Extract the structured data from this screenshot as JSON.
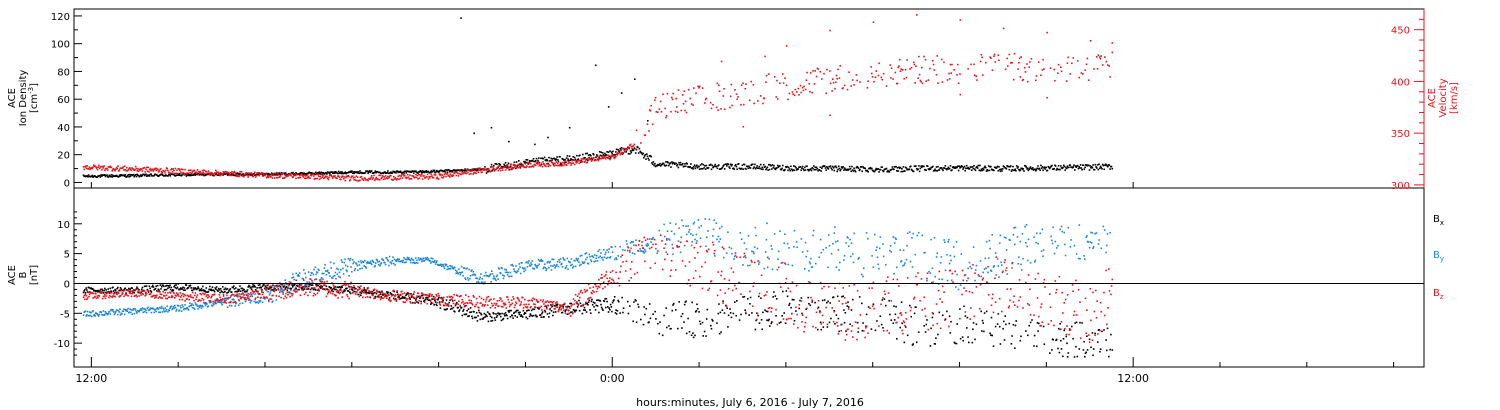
{
  "colors": {
    "black": "#000000",
    "red": "#e8141c",
    "blue": "#1a86d8"
  },
  "xaxis": {
    "label": "hours:minutes, July  6, 2016 - July  7, 2016",
    "major_ticks": [
      {
        "hours": 12,
        "label": "12:00"
      },
      {
        "hours": 24,
        "label": "0:00"
      },
      {
        "hours": 36,
        "label": "12:00"
      }
    ],
    "minor_tick_hours": [
      14,
      16,
      18,
      20,
      22,
      26,
      28,
      30,
      32,
      34,
      38,
      40,
      42
    ],
    "range_hours": [
      11.6,
      42.7
    ]
  },
  "chart_data": [
    {
      "type": "scatter",
      "panel": "top",
      "ylabel_left": [
        "ACE",
        "Ion Density",
        "[cm-3]"
      ],
      "ylabel_right": [
        "ACE",
        "Velocity",
        "[km/s]"
      ],
      "ylim_left": [
        -4,
        125
      ],
      "yticks_left": [
        0,
        20,
        40,
        60,
        80,
        100,
        120
      ],
      "ylim_right": [
        297,
        470
      ],
      "yticks_right": [
        300,
        350,
        400,
        450
      ],
      "x_units": "hours since 0:00 July 6, 2016",
      "series": [
        {
          "color": "black",
          "axis": "left",
          "values": [
            [
              11.8,
              5.0
            ],
            [
              13,
              5.5
            ],
            [
              14,
              6.0
            ],
            [
              15,
              6.5
            ],
            [
              16,
              6.5
            ],
            [
              17,
              7.0
            ],
            [
              18,
              8.0
            ],
            [
              19,
              8.0
            ],
            [
              20,
              8.5
            ],
            [
              21,
              10.0
            ],
            [
              22,
              14.0
            ],
            [
              22.5,
              16.0
            ],
            [
              23,
              17.0
            ],
            [
              23.5,
              19.0
            ],
            [
              24,
              21.0
            ],
            [
              24.5,
              25.0
            ],
            [
              25,
              14.0
            ],
            [
              26,
              12.0
            ],
            [
              27,
              12.0
            ],
            [
              28,
              11.0
            ],
            [
              29,
              10.5
            ],
            [
              30,
              10.0
            ],
            [
              31,
              10.5
            ],
            [
              32,
              11.0
            ],
            [
              33,
              10.5
            ],
            [
              34,
              11.0
            ],
            [
              35,
              11.5
            ],
            [
              35.5,
              12.0
            ]
          ],
          "outliers": [
            [
              20.8,
              36
            ],
            [
              21.2,
              40
            ],
            [
              21.6,
              30
            ],
            [
              22.5,
              33
            ],
            [
              23,
              40
            ],
            [
              23.6,
              85
            ],
            [
              23.9,
              55
            ],
            [
              24.2,
              65
            ],
            [
              24.5,
              75
            ],
            [
              24.8,
              45
            ],
            [
              22.2,
              28
            ],
            [
              20.5,
              119
            ]
          ]
        },
        {
          "color": "red",
          "axis": "right",
          "values": [
            [
              11.8,
              318
            ],
            [
              13,
              316
            ],
            [
              14,
              314
            ],
            [
              15,
              312
            ],
            [
              16,
              310
            ],
            [
              17,
              309
            ],
            [
              18,
              307
            ],
            [
              19,
              308
            ],
            [
              20,
              309
            ],
            [
              21,
              315
            ],
            [
              22,
              320
            ],
            [
              23,
              322
            ],
            [
              24,
              328
            ],
            [
              24.5,
              340
            ],
            [
              25,
              375
            ],
            [
              26,
              383
            ],
            [
              27,
              390
            ],
            [
              28,
              397
            ],
            [
              29,
              403
            ],
            [
              30,
              409
            ],
            [
              31,
              411
            ],
            [
              32,
              413
            ],
            [
              33,
              415
            ],
            [
              34,
              414
            ],
            [
              35,
              415
            ],
            [
              35.5,
              416
            ]
          ],
          "outliers": [
            [
              26.5,
              420
            ],
            [
              27.5,
              425
            ],
            [
              28,
              435
            ],
            [
              29,
              450
            ],
            [
              30,
              458
            ],
            [
              31,
              465
            ],
            [
              32,
              460
            ],
            [
              33,
              452
            ],
            [
              34,
              448
            ],
            [
              35,
              440
            ],
            [
              35.5,
              438
            ],
            [
              27,
              357
            ],
            [
              29,
              368
            ],
            [
              32,
              388
            ],
            [
              34,
              385
            ]
          ]
        }
      ]
    },
    {
      "type": "scatter",
      "panel": "bottom",
      "ylabel_left": [
        "ACE",
        "B",
        "[nT]"
      ],
      "ylim": [
        -14,
        16
      ],
      "yticks": [
        -10,
        -5,
        0,
        5,
        10
      ],
      "zero_line": true,
      "x_units": "hours since 0:00 July 6, 2016",
      "series": [
        {
          "name": "B",
          "subscript": "x",
          "color": "black",
          "values": [
            [
              11.8,
              -1.0
            ],
            [
              13,
              -1.0
            ],
            [
              14,
              -0.5
            ],
            [
              15,
              -1.0
            ],
            [
              16,
              -0.5
            ],
            [
              17,
              -0.5
            ],
            [
              18,
              -1.0
            ],
            [
              19,
              -2.0
            ],
            [
              20,
              -3.0
            ],
            [
              21,
              -5.5
            ],
            [
              22,
              -5.0
            ],
            [
              23,
              -4.0
            ],
            [
              24,
              -3.5
            ],
            [
              25,
              -5.5
            ],
            [
              26,
              -6.0
            ],
            [
              27,
              -5.0
            ],
            [
              28,
              -4.0
            ],
            [
              29,
              -5.0
            ],
            [
              30,
              -5.0
            ],
            [
              31,
              -7.0
            ],
            [
              32,
              -6.5
            ],
            [
              33,
              -8.0
            ],
            [
              34,
              -9.0
            ],
            [
              35,
              -9.5
            ],
            [
              35.5,
              -10.0
            ]
          ],
          "amp": [
            0.5,
            0.6,
            0.5,
            0.6,
            0.5,
            0.6,
            0.8,
            0.8,
            1.0,
            0.8,
            1.0,
            1.2,
            2.0,
            3.0,
            3.0,
            3.0,
            3.0,
            3.0,
            3.5,
            3.5,
            3.0,
            3.0,
            3.0,
            2.5,
            2.0
          ]
        },
        {
          "name": "B",
          "subscript": "y",
          "color": "blue",
          "values": [
            [
              11.8,
              -5.0
            ],
            [
              13,
              -4.5
            ],
            [
              14,
              -4.0
            ],
            [
              15,
              -3.0
            ],
            [
              16,
              -2.0
            ],
            [
              17,
              1.5
            ],
            [
              18,
              3.0
            ],
            [
              19,
              4.0
            ],
            [
              19.8,
              4.0
            ],
            [
              20.5,
              2.0
            ],
            [
              21,
              1.0
            ],
            [
              22,
              3.0
            ],
            [
              23,
              3.5
            ],
            [
              24,
              5.5
            ],
            [
              25,
              7.0
            ],
            [
              26,
              9.0
            ],
            [
              27,
              6.0
            ],
            [
              28,
              6.5
            ],
            [
              29,
              6.0
            ],
            [
              30,
              5.0
            ],
            [
              31,
              5.0
            ],
            [
              32,
              3.0
            ],
            [
              33,
              5.0
            ],
            [
              34,
              8.0
            ],
            [
              35,
              7.0
            ],
            [
              35.5,
              7.5
            ]
          ],
          "amp": [
            0.5,
            0.5,
            0.6,
            1.0,
            1.5,
            1.5,
            0.8,
            0.5,
            0.5,
            1.0,
            1.0,
            1.0,
            1.0,
            1.5,
            3.0,
            3.5,
            4.0,
            4.0,
            4.0,
            4.0,
            4.0,
            4.0,
            4.0,
            3.0,
            2.5,
            2.0
          ]
        },
        {
          "name": "B",
          "subscript": "z",
          "color": "red",
          "values": [
            [
              11.8,
              -2.0
            ],
            [
              13,
              -1.5
            ],
            [
              14,
              -2.0
            ],
            [
              15,
              -2.5
            ],
            [
              16,
              -1.5
            ],
            [
              17,
              -0.5
            ],
            [
              18,
              -1.0
            ],
            [
              19,
              -2.0
            ],
            [
              20,
              -2.5
            ],
            [
              21,
              -3.0
            ],
            [
              22,
              -3.0
            ],
            [
              23,
              -4.0
            ],
            [
              24,
              2.0
            ],
            [
              25,
              6.0
            ],
            [
              26,
              3.0
            ],
            [
              27,
              0.0
            ],
            [
              28,
              -2.0
            ],
            [
              29,
              -5.0
            ],
            [
              30,
              -4.0
            ],
            [
              31,
              -3.0
            ],
            [
              32,
              -2.0
            ],
            [
              33,
              0.0
            ],
            [
              34,
              -3.0
            ],
            [
              35,
              -5.0
            ],
            [
              35.5,
              -1.0
            ]
          ],
          "amp": [
            0.6,
            0.6,
            0.8,
            0.8,
            1.5,
            1.5,
            1.0,
            1.0,
            1.0,
            1.0,
            1.0,
            1.5,
            3.0,
            4.0,
            5.0,
            6.0,
            5.0,
            5.0,
            5.0,
            5.0,
            5.0,
            5.0,
            5.0,
            5.0,
            3.0
          ]
        }
      ]
    }
  ]
}
